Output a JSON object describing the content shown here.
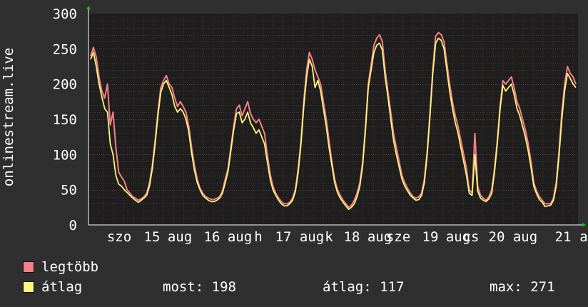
{
  "ylabel": "onlinestream.live",
  "legend": {
    "series": [
      {
        "label": "legtöbb",
        "color": "#f47f85"
      },
      {
        "label": "átlag",
        "color": "#fbf47f"
      }
    ],
    "stats": {
      "most": "most: 198",
      "atlag": "átlag: 117",
      "max": "max: 271"
    }
  },
  "colors": {
    "background": "#2f2f2f",
    "plot_background": "#1e1e1e",
    "grid": "#4d3030",
    "axis": "#ffffff",
    "arrow": "#00cc00"
  },
  "chart_data": {
    "type": "line",
    "ylim": [
      0,
      300
    ],
    "yticks": [
      0,
      50,
      100,
      150,
      200,
      250,
      300
    ],
    "x_tick_labels": [
      "szo",
      "15",
      "aug",
      "16",
      "aug",
      "h",
      "17",
      "aug",
      "k",
      "18",
      "aug",
      "sze",
      "19",
      "aug",
      "cs",
      "20",
      "aug",
      "21",
      "a"
    ],
    "grid": true,
    "legend_position": "bottom-left",
    "series": [
      {
        "name": "legtöbb",
        "color": "#f47f85",
        "values": [
          240,
          252,
          238,
          210,
          190,
          180,
          200,
          142,
          160,
          110,
          75,
          68,
          62,
          50,
          45,
          40,
          38,
          35,
          37,
          40,
          45,
          60,
          85,
          120,
          160,
          195,
          205,
          212,
          200,
          195,
          180,
          168,
          175,
          168,
          160,
          140,
          110,
          85,
          65,
          52,
          45,
          40,
          38,
          36,
          36,
          38,
          40,
          48,
          65,
          80,
          110,
          140,
          165,
          170,
          155,
          165,
          175,
          158,
          150,
          145,
          150,
          140,
          130,
          100,
          72,
          55,
          45,
          38,
          33,
          30,
          30,
          32,
          38,
          50,
          80,
          120,
          175,
          220,
          245,
          235,
          220,
          210,
          200,
          175,
          150,
          120,
          90,
          65,
          50,
          42,
          35,
          30,
          25,
          28,
          35,
          45,
          60,
          90,
          140,
          200,
          228,
          255,
          265,
          270,
          260,
          220,
          190,
          160,
          130,
          110,
          90,
          70,
          60,
          52,
          45,
          40,
          38,
          40,
          45,
          65,
          105,
          160,
          220,
          268,
          273,
          270,
          260,
          230,
          200,
          175,
          155,
          140,
          120,
          100,
          80,
          50,
          45,
          130,
          55,
          42,
          38,
          35,
          40,
          50,
          80,
          120,
          170,
          205,
          200,
          205,
          210,
          195,
          175,
          165,
          150,
          135,
          115,
          90,
          60,
          48,
          40,
          35,
          30,
          30,
          30,
          38,
          60,
          105,
          160,
          200,
          225,
          215,
          210,
          200
        ]
      },
      {
        "name": "átlag",
        "color": "#fbf47f",
        "values": [
          235,
          245,
          225,
          200,
          182,
          165,
          160,
          115,
          100,
          70,
          58,
          55,
          50,
          46,
          42,
          38,
          35,
          32,
          35,
          38,
          42,
          55,
          80,
          115,
          155,
          188,
          200,
          205,
          195,
          185,
          168,
          160,
          165,
          160,
          150,
          132,
          102,
          78,
          60,
          50,
          42,
          38,
          35,
          33,
          33,
          35,
          38,
          45,
          60,
          76,
          105,
          135,
          158,
          160,
          145,
          150,
          160,
          145,
          138,
          130,
          135,
          125,
          115,
          90,
          65,
          50,
          42,
          35,
          30,
          27,
          27,
          30,
          35,
          47,
          75,
          115,
          168,
          210,
          235,
          225,
          195,
          205,
          190,
          165,
          140,
          110,
          85,
          60,
          46,
          38,
          32,
          27,
          22,
          25,
          30,
          40,
          55,
          85,
          135,
          195,
          220,
          245,
          255,
          258,
          248,
          210,
          182,
          150,
          120,
          100,
          82,
          65,
          55,
          48,
          42,
          38,
          35,
          36,
          42,
          60,
          100,
          155,
          215,
          258,
          265,
          262,
          250,
          220,
          190,
          165,
          145,
          130,
          110,
          90,
          70,
          45,
          42,
          100,
          48,
          38,
          35,
          33,
          37,
          45,
          75,
          115,
          165,
          198,
          190,
          195,
          200,
          185,
          165,
          155,
          140,
          125,
          105,
          82,
          55,
          44,
          36,
          32,
          26,
          27,
          28,
          35,
          55,
          98,
          150,
          190,
          215,
          208,
          200,
          195
        ]
      }
    ]
  }
}
